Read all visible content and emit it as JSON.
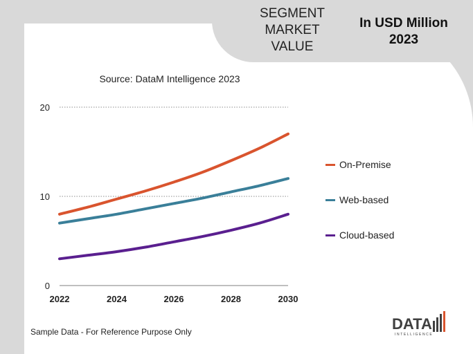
{
  "header": {
    "segment_lines": [
      "SEGMENT",
      "MARKET",
      "VALUE"
    ],
    "unit_lines": [
      "In USD Million",
      "2023"
    ]
  },
  "source": "Source: DataM Intelligence  2023",
  "footnote": "Sample Data - For Reference Purpose Only",
  "logo": {
    "word": "DATA",
    "sub": "INTELLIGENCE"
  },
  "colors": {
    "background": "#d9d9d9",
    "card": "#ffffff",
    "on_premise": "#d9542e",
    "web_based": "#3a7f99",
    "cloud_based": "#5a1f8f"
  },
  "chart_data": {
    "type": "line",
    "x": [
      2022,
      2023,
      2024,
      2025,
      2026,
      2027,
      2028,
      2029,
      2030
    ],
    "x_ticks": [
      "2022",
      "2024",
      "2026",
      "2028",
      "2030"
    ],
    "y_ticks": [
      "0",
      "10",
      "20"
    ],
    "ylim": [
      0,
      20
    ],
    "xlim": [
      2022,
      2030
    ],
    "grid": "horizontal dotted",
    "legend": "right",
    "series": [
      {
        "name": "On-Premise",
        "color": "#d9542e",
        "values": [
          8.0,
          8.8,
          9.7,
          10.6,
          11.6,
          12.7,
          14.0,
          15.4,
          17.0
        ]
      },
      {
        "name": "Web-based",
        "color": "#3a7f99",
        "values": [
          7.0,
          7.5,
          8.0,
          8.6,
          9.2,
          9.8,
          10.5,
          11.2,
          12.0
        ]
      },
      {
        "name": "Cloud-based",
        "color": "#5a1f8f",
        "values": [
          3.0,
          3.4,
          3.8,
          4.3,
          4.9,
          5.5,
          6.2,
          7.0,
          8.0
        ]
      }
    ]
  }
}
